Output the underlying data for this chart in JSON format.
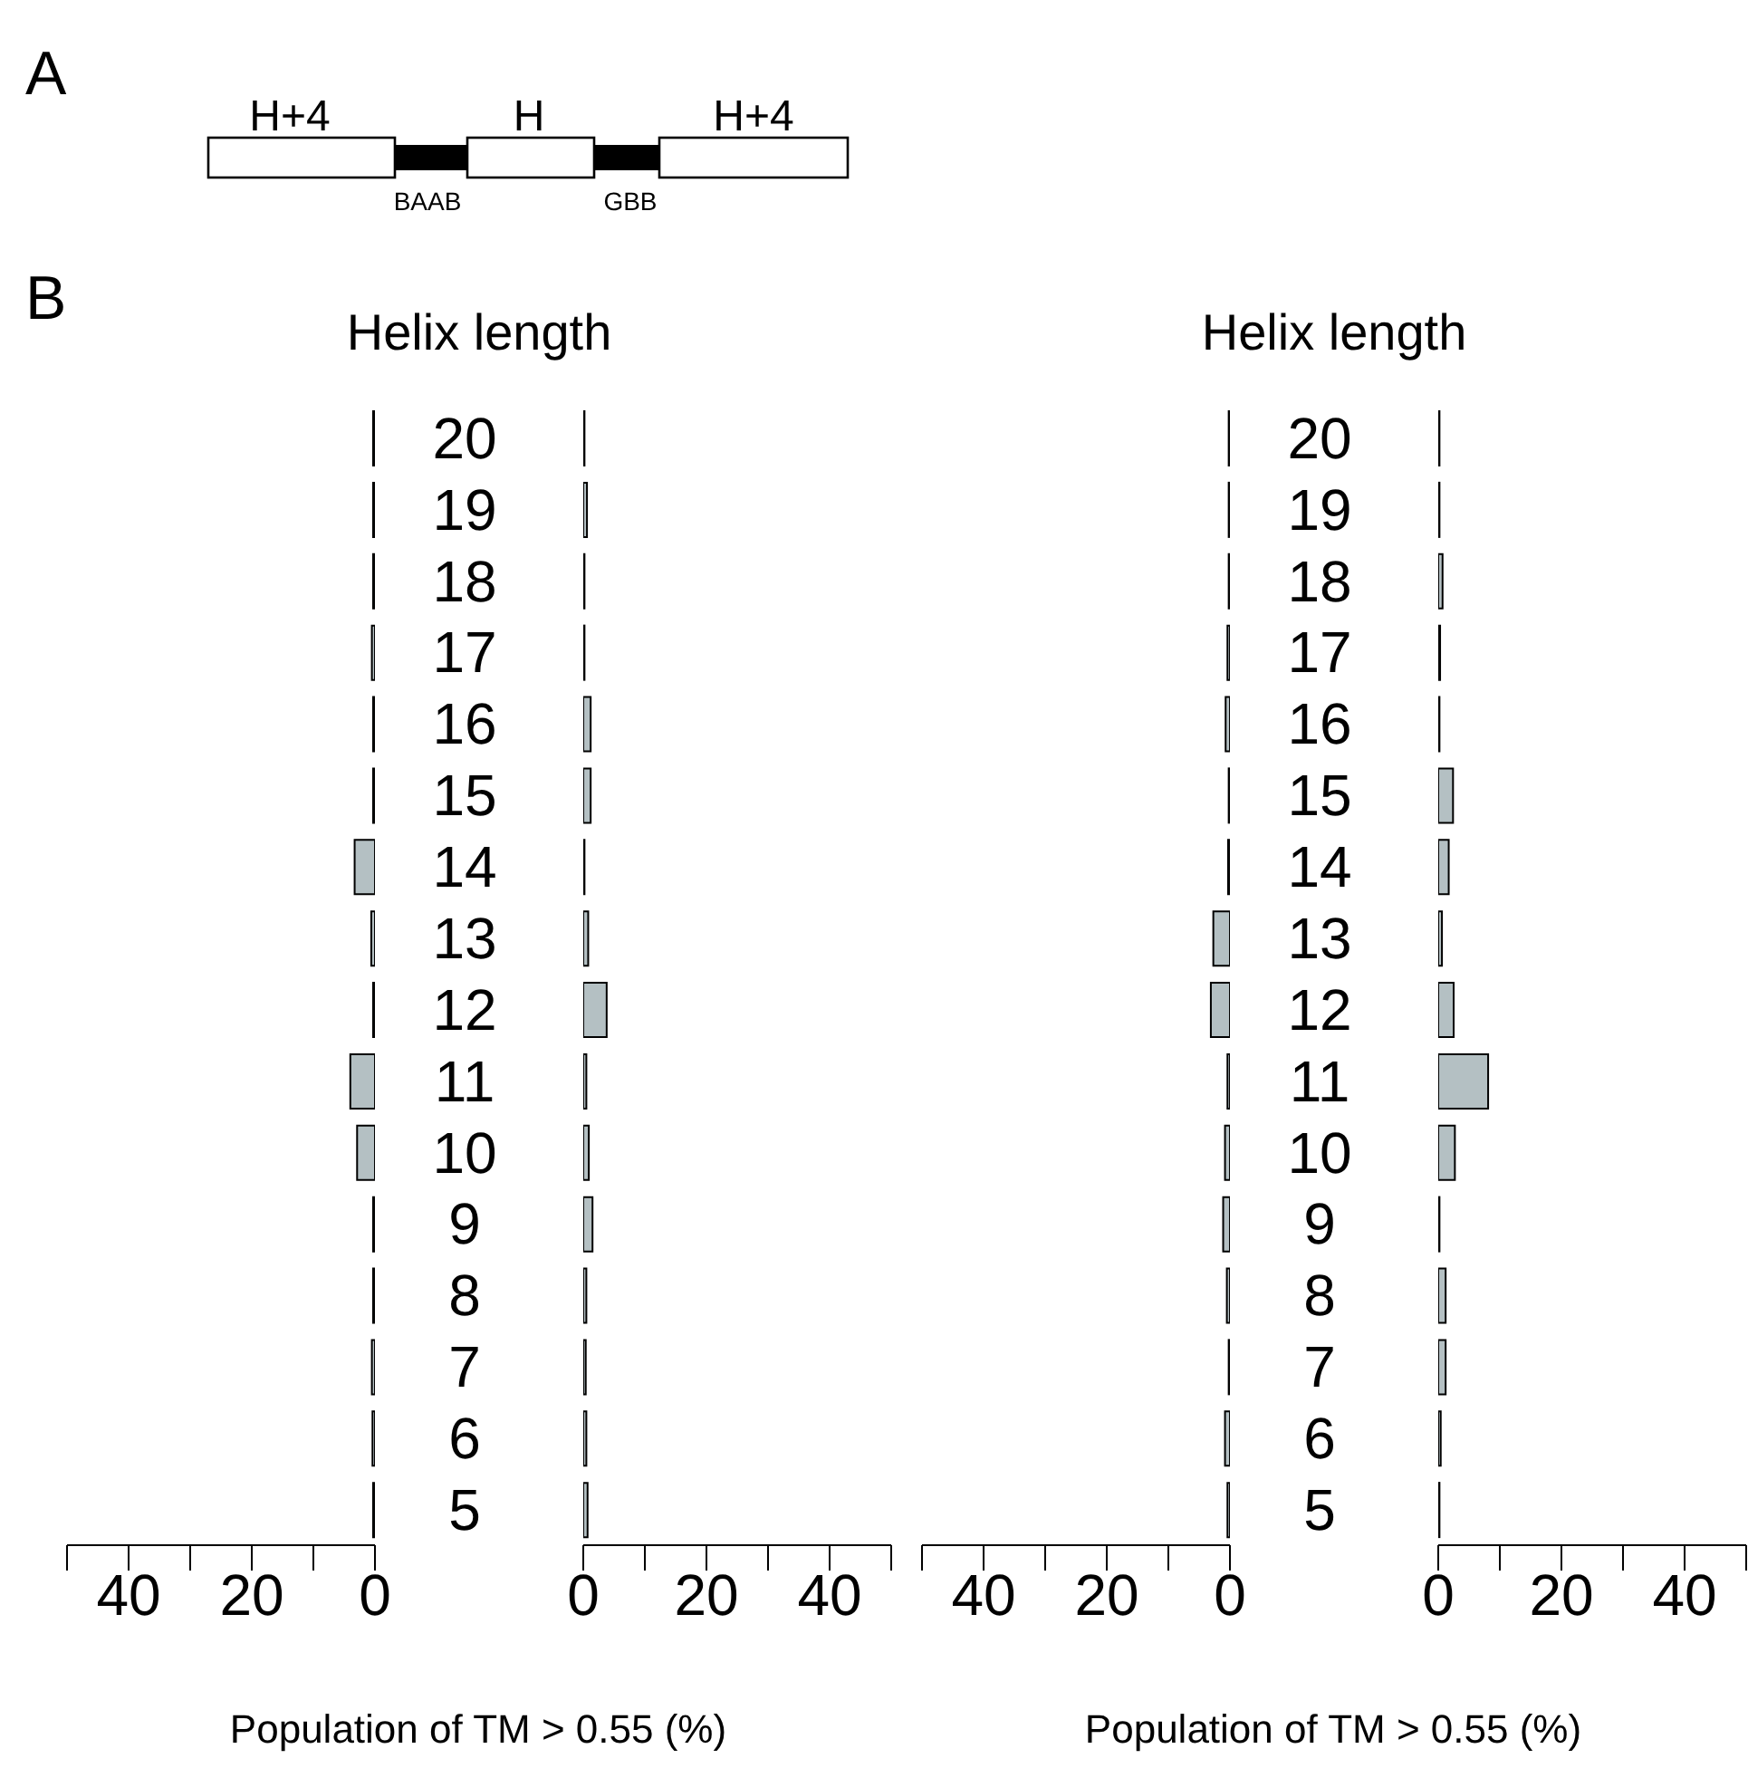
{
  "chart_data": [
    {
      "type": "other",
      "annotations": [
        "A",
        "H+4",
        "H",
        "H+4",
        "BAAB",
        "GBB",
        "B"
      ]
    },
    {
      "type": "bar",
      "orientation": "horizontal",
      "categories": [
        "20",
        "19",
        "18",
        "17",
        "16",
        "15",
        "14",
        "13",
        "12",
        "11",
        "10",
        "9",
        "8",
        "7",
        "6",
        "5"
      ],
      "values": [
        0.3,
        0.3,
        0.3,
        0.5,
        0.3,
        0.3,
        3.3,
        0.6,
        0.3,
        4,
        2.9,
        0.3,
        0.3,
        0.5,
        0.4,
        0.3
      ],
      "color": "#b4c0c3",
      "xlim": [
        50,
        0
      ],
      "xticks": [
        {
          "value": 50,
          "label": null
        },
        40,
        {
          "value": 30,
          "label": null
        },
        20,
        {
          "value": 10,
          "label": null
        },
        0
      ],
      "xlabel": "Population of TM > 0.55 (%)",
      "tick_labels": "x"
    },
    {
      "type": "bar",
      "orientation": "horizontal",
      "categories": [
        "20",
        "19",
        "18",
        "17",
        "16",
        "15",
        "14",
        "13",
        "12",
        "11",
        "10",
        "9",
        "8",
        "7",
        "6",
        "5"
      ],
      "values": [
        0.2,
        0.6,
        0.2,
        0.2,
        1.2,
        1.2,
        0.2,
        0.8,
        3.8,
        0.5,
        0.9,
        1.5,
        0.5,
        0.4,
        0.5,
        0.7
      ],
      "color": "#b4c0c3",
      "xlim": [
        0,
        50
      ],
      "xticks": [
        0,
        {
          "value": 10,
          "label": null
        },
        20,
        {
          "value": 30,
          "label": null
        },
        40,
        {
          "value": 50,
          "label": null
        }
      ],
      "ylabel": "Helix length"
    },
    {
      "type": "bar",
      "orientation": "horizontal",
      "categories": [
        "20",
        "19",
        "18",
        "17",
        "16",
        "15",
        "14",
        "13",
        "12",
        "11",
        "10",
        "9",
        "8",
        "7",
        "6",
        "5"
      ],
      "values": [
        0.2,
        0.2,
        0.2,
        0.4,
        0.7,
        0.2,
        0.3,
        2.7,
        3.1,
        0.4,
        0.8,
        1.1,
        0.5,
        0.2,
        0.8,
        0.4
      ],
      "color": "#b4c0c3",
      "xlim": [
        50,
        0
      ],
      "xticks": [
        {
          "value": 50,
          "label": null
        },
        40,
        {
          "value": 30,
          "label": null
        },
        20,
        {
          "value": 10,
          "label": null
        },
        0
      ],
      "xlabel": "Population of TM > 0.55 (%)",
      "tick_labels": "x"
    },
    {
      "type": "bar",
      "orientation": "horizontal",
      "categories": [
        "20",
        "19",
        "18",
        "17",
        "16",
        "15",
        "14",
        "13",
        "12",
        "11",
        "10",
        "9",
        "8",
        "7",
        "6",
        "5"
      ],
      "values": [
        0.2,
        0.2,
        0.7,
        0.3,
        0.2,
        2.4,
        1.7,
        0.6,
        2.5,
        8.1,
        2.7,
        0.2,
        1.2,
        1.2,
        0.4,
        0.2
      ],
      "color": "#b4c0c3",
      "xlim": [
        0,
        50
      ],
      "xticks": [
        0,
        {
          "value": 10,
          "label": null
        },
        20,
        {
          "value": 30,
          "label": null
        },
        40,
        {
          "value": 50,
          "label": null
        }
      ],
      "ylabel": "Helix length"
    }
  ]
}
